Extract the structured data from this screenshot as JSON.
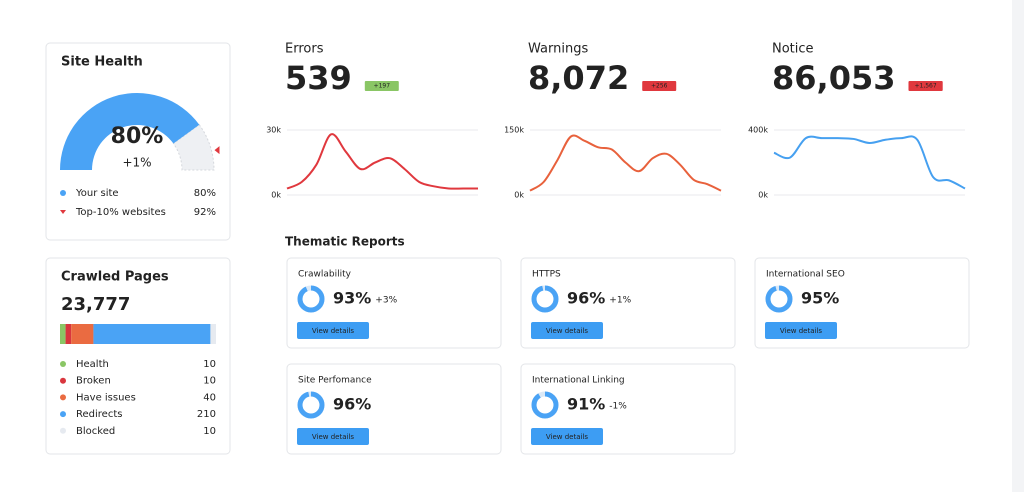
{
  "site_health": {
    "title": "Site Health",
    "change": "+1%",
    "legend": [
      {
        "name": "Your site",
        "value": 80,
        "value_label": "80%",
        "color": "#4aa3f5"
      },
      {
        "name": "Top-10% websites",
        "value": 92,
        "value_label": "92%",
        "color": "#e0383e"
      }
    ]
  },
  "crawled_pages": {
    "title": "Crawled Pages",
    "total": "23,777",
    "items": [
      {
        "name": "Health",
        "value": 10,
        "color": "#8ac665"
      },
      {
        "name": "Broken",
        "value": 10,
        "color": "#d9363e"
      },
      {
        "name": "Have issues",
        "value": 40,
        "color": "#ea6b41"
      },
      {
        "name": "Redirects",
        "value": 210,
        "color": "#4aa3f5"
      },
      {
        "name": "Blocked",
        "value": 10,
        "color": "#e6eaf0"
      }
    ]
  },
  "metrics": [
    {
      "title": "Errors",
      "total": "539",
      "color": "#e0383e",
      "badge": "+197",
      "badge_color": "#8ac665",
      "ylim": [
        0,
        30000
      ],
      "yticks": [
        {
          "value": 0,
          "label": "0k"
        },
        {
          "value": 30000,
          "label": "30k"
        }
      ],
      "values": [
        3000,
        6000,
        14000,
        28000,
        20000,
        12000,
        15000,
        17000,
        12000,
        6000,
        4000,
        3000,
        3000,
        3000
      ]
    },
    {
      "title": "Warnings",
      "total": "8,072",
      "color": "#e8613c",
      "badge": "+256",
      "badge_color": "#e0383e",
      "ylim": [
        0,
        150000
      ],
      "yticks": [
        {
          "value": 0,
          "label": "0k"
        },
        {
          "value": 150000,
          "label": "150k"
        }
      ],
      "values": [
        10000,
        30000,
        80000,
        135000,
        125000,
        110000,
        105000,
        75000,
        55000,
        85000,
        95000,
        70000,
        35000,
        25000,
        10000
      ]
    },
    {
      "title": "Notice",
      "total": "86,053",
      "color": "#46a0f0",
      "badge": "+1,567",
      "badge_color": "#e0383e",
      "ylim": [
        0,
        400000
      ],
      "yticks": [
        {
          "value": 0,
          "label": "0k"
        },
        {
          "value": 400000,
          "label": "400k"
        }
      ],
      "values": [
        260000,
        230000,
        350000,
        350000,
        350000,
        345000,
        320000,
        340000,
        350000,
        340000,
        110000,
        90000,
        40000
      ]
    }
  ],
  "thematic_reports": {
    "title": "Thematic Reports",
    "button": "View details",
    "items": [
      {
        "name": "Crawlability",
        "value": 93,
        "value_label": "93%",
        "change": "+3%",
        "change_color": "#5cb85c"
      },
      {
        "name": "HTTPS",
        "value": 96,
        "value_label": "96%",
        "change": "+1%",
        "change_color": "#5cb85c"
      },
      {
        "name": "International SEO",
        "value": 95,
        "value_label": "95%"
      },
      {
        "name": "Site Perfomance",
        "value": 96,
        "value_label": "96%"
      },
      {
        "name": "International Linking",
        "value": 91,
        "value_label": "91%",
        "change": "-1%",
        "change_color": "#e0383e"
      }
    ]
  }
}
